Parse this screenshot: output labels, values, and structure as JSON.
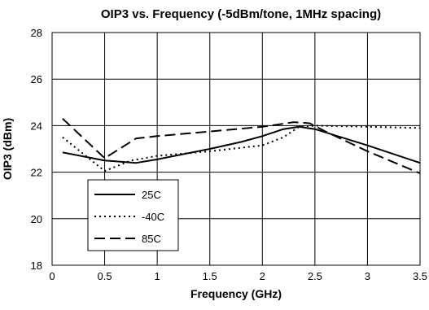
{
  "chart_data": {
    "type": "line",
    "title": "OIP3 vs. Frequency (-5dBm/tone, 1MHz spacing)",
    "xlabel": "Frequency (GHz)",
    "ylabel": "OIP3 (dBm)",
    "xlim": [
      0,
      3.5
    ],
    "ylim": [
      18,
      28
    ],
    "xticks": [
      "0",
      "0.5",
      "1",
      "1.5",
      "2",
      "2.5",
      "3",
      "3.5"
    ],
    "yticks": [
      "18",
      "20",
      "22",
      "24",
      "26",
      "28"
    ],
    "grid": true,
    "legend_position": "lower-left",
    "series": [
      {
        "name": "25C",
        "style": "solid",
        "color": "#000000",
        "x": [
          0.1,
          0.5,
          0.8,
          1.0,
          1.5,
          1.8,
          2.0,
          2.2,
          2.35,
          2.5,
          3.0,
          3.5
        ],
        "y": [
          22.85,
          22.5,
          22.4,
          22.55,
          23.0,
          23.3,
          23.55,
          23.85,
          23.95,
          23.85,
          23.15,
          22.4
        ]
      },
      {
        "name": "-40C",
        "style": "dotted",
        "color": "#000000",
        "x": [
          0.1,
          0.5,
          0.75,
          1.0,
          1.5,
          2.0,
          2.2,
          2.35,
          2.5,
          3.0,
          3.5
        ],
        "y": [
          23.5,
          22.05,
          22.5,
          22.7,
          22.9,
          23.15,
          23.5,
          23.95,
          24.0,
          23.95,
          23.9
        ]
      },
      {
        "name": "85C",
        "style": "dashed",
        "color": "#000000",
        "x": [
          0.1,
          0.5,
          0.8,
          1.0,
          1.5,
          2.0,
          2.3,
          2.45,
          2.6,
          3.0,
          3.5
        ],
        "y": [
          24.3,
          22.6,
          23.45,
          23.55,
          23.75,
          23.95,
          24.15,
          24.1,
          23.75,
          22.9,
          21.95
        ]
      }
    ]
  }
}
